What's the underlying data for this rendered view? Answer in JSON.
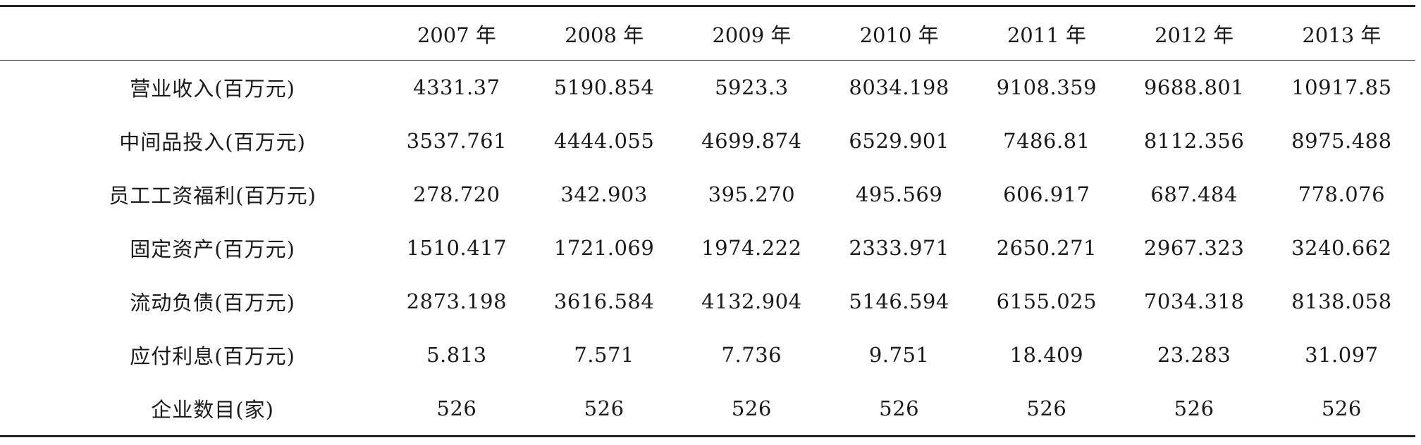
{
  "table": {
    "corner": "",
    "years": [
      "2007 年",
      "2008 年",
      "2009 年",
      "2010 年",
      "2011 年",
      "2012 年",
      "2013 年"
    ],
    "rows": [
      {
        "label": "营业收入(百万元)",
        "values": [
          "4331.37",
          "5190.854",
          "5923.3",
          "8034.198",
          "9108.359",
          "9688.801",
          "10917.85"
        ]
      },
      {
        "label": "中间品投入(百万元)",
        "values": [
          "3537.761",
          "4444.055",
          "4699.874",
          "6529.901",
          "7486.81",
          "8112.356",
          "8975.488"
        ]
      },
      {
        "label": "员工工资福利(百万元)",
        "values": [
          "278.720",
          "342.903",
          "395.270",
          "495.569",
          "606.917",
          "687.484",
          "778.076"
        ]
      },
      {
        "label": "固定资产(百万元)",
        "values": [
          "1510.417",
          "1721.069",
          "1974.222",
          "2333.971",
          "2650.271",
          "2967.323",
          "3240.662"
        ]
      },
      {
        "label": "流动负债(百万元)",
        "values": [
          "2873.198",
          "3616.584",
          "4132.904",
          "5146.594",
          "6155.025",
          "7034.318",
          "8138.058"
        ]
      },
      {
        "label": "应付利息(百万元)",
        "values": [
          "5.813",
          "7.571",
          "7.736",
          "9.751",
          "18.409",
          "23.283",
          "31.097"
        ]
      },
      {
        "label": "企业数目(家)",
        "values": [
          "526",
          "526",
          "526",
          "526",
          "526",
          "526",
          "526"
        ]
      }
    ]
  }
}
